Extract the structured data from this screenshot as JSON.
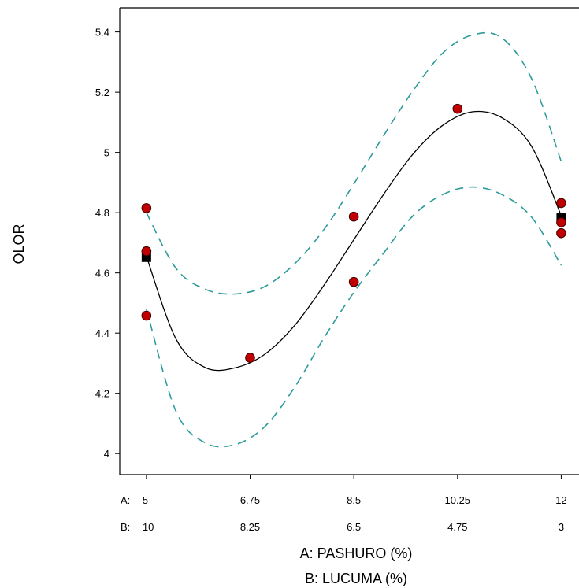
{
  "chart_data": {
    "type": "scatter",
    "xlabel": "A: PASHURO (%)",
    "xlabel2": "B: LUCUMA (%)",
    "ylabel": "OLOR",
    "xlim": [
      4.55,
      12.3
    ],
    "ylim": [
      3.93,
      5.48
    ],
    "x_ticks": {
      "label_prefix_a": "A:",
      "label_prefix_b": "B:",
      "values": [
        5,
        6.75,
        8.5,
        10.25,
        12
      ],
      "a_labels": [
        "5",
        "6.75",
        "8.5",
        "10.25",
        "12"
      ],
      "b_labels": [
        "10",
        "8.25",
        "6.5",
        "4.75",
        "3"
      ]
    },
    "y_ticks": {
      "values": [
        4,
        4.2,
        4.4,
        4.6,
        4.8,
        5,
        5.2,
        5.4
      ],
      "labels": [
        "4",
        "4.2",
        "4.4",
        "4.6",
        "4.8",
        "5",
        "5.2",
        "5.4"
      ]
    },
    "observed_points": {
      "x": [
        5,
        5,
        5,
        6.75,
        8.5,
        8.5,
        10.25,
        12,
        12,
        12
      ],
      "y": [
        4.815,
        4.672,
        4.458,
        4.318,
        4.787,
        4.57,
        5.145,
        4.832,
        4.768,
        4.732
      ],
      "color": "#c00000"
    },
    "design_points": {
      "x": [
        5,
        12
      ],
      "y": [
        4.652,
        4.782
      ],
      "color": "#000000"
    },
    "fit_curve": {
      "color": "#000000",
      "x": [
        5,
        5.5,
        6,
        6.5,
        7,
        7.5,
        8,
        8.5,
        9,
        9.5,
        10,
        10.5,
        11,
        11.5,
        12
      ],
      "y": [
        4.655,
        4.38,
        4.285,
        4.285,
        4.33,
        4.425,
        4.56,
        4.71,
        4.86,
        4.995,
        5.09,
        5.135,
        5.115,
        5.02,
        4.79
      ]
    },
    "ci_upper": {
      "color": "#2e9a9a",
      "x": [
        5,
        5.5,
        6,
        6.5,
        7,
        7.5,
        8,
        8.5,
        9,
        9.5,
        10,
        10.5,
        11,
        11.5,
        12
      ],
      "y": [
        4.8,
        4.615,
        4.545,
        4.53,
        4.555,
        4.63,
        4.745,
        4.895,
        5.055,
        5.205,
        5.33,
        5.39,
        5.38,
        5.245,
        4.97
      ]
    },
    "ci_lower": {
      "color": "#2e9a9a",
      "x": [
        5,
        5.5,
        6,
        6.5,
        7,
        7.5,
        8,
        8.5,
        9,
        9.5,
        10,
        10.5,
        11,
        11.5,
        12
      ],
      "y": [
        4.48,
        4.14,
        4.035,
        4.03,
        4.09,
        4.22,
        4.385,
        4.535,
        4.665,
        4.79,
        4.86,
        4.885,
        4.86,
        4.785,
        4.625
      ]
    }
  }
}
